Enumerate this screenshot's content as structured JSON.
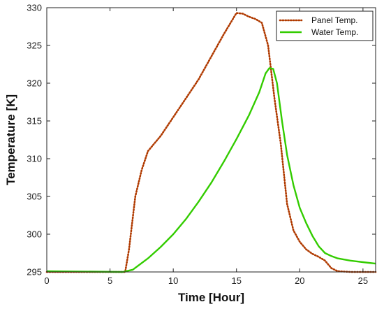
{
  "chart_data": {
    "type": "line",
    "xlabel": "Time [Hour]",
    "ylabel": "Temperature [K]",
    "xlim": [
      0,
      26
    ],
    "ylim": [
      295,
      330
    ],
    "xticks": [
      0,
      5,
      10,
      15,
      20,
      25
    ],
    "yticks": [
      295,
      300,
      305,
      310,
      315,
      320,
      325,
      330
    ],
    "grid": false,
    "legend": "top-right",
    "series": [
      {
        "name": "Panel Temp.",
        "color": "#b03a00",
        "style": "dotted",
        "points": [
          [
            0,
            295
          ],
          [
            6.2,
            295
          ],
          [
            6.5,
            298
          ],
          [
            7,
            305
          ],
          [
            7.5,
            308.5
          ],
          [
            8,
            311
          ],
          [
            9,
            313
          ],
          [
            10,
            315.5
          ],
          [
            11,
            318
          ],
          [
            12,
            320.5
          ],
          [
            13,
            323.5
          ],
          [
            14,
            326.5
          ],
          [
            15,
            329.3
          ],
          [
            15.5,
            329.2
          ],
          [
            16,
            328.8
          ],
          [
            16.5,
            328.5
          ],
          [
            17,
            328.0
          ],
          [
            17.5,
            325
          ],
          [
            18,
            318
          ],
          [
            18.5,
            312
          ],
          [
            19,
            304
          ],
          [
            19.5,
            300.5
          ],
          [
            20,
            299
          ],
          [
            20.5,
            298
          ],
          [
            21,
            297.4
          ],
          [
            21.5,
            297
          ],
          [
            22,
            296.5
          ],
          [
            22.5,
            295.5
          ],
          [
            23,
            295.1
          ],
          [
            24,
            295
          ],
          [
            26,
            295
          ]
        ]
      },
      {
        "name": "Water Temp.",
        "color": "#33cc00",
        "style": "solid",
        "points": [
          [
            0,
            295.1
          ],
          [
            6,
            295
          ],
          [
            6.8,
            295.3
          ],
          [
            8,
            296.8
          ],
          [
            9,
            298.3
          ],
          [
            10,
            300
          ],
          [
            11,
            302
          ],
          [
            12,
            304.3
          ],
          [
            13,
            306.8
          ],
          [
            14,
            309.6
          ],
          [
            15,
            312.6
          ],
          [
            16,
            315.8
          ],
          [
            16.8,
            318.8
          ],
          [
            17.3,
            321.3
          ],
          [
            17.6,
            322.0
          ],
          [
            17.9,
            321.9
          ],
          [
            18.2,
            320
          ],
          [
            18.6,
            315
          ],
          [
            19,
            310.5
          ],
          [
            19.5,
            306.5
          ],
          [
            20,
            303.5
          ],
          [
            20.5,
            301.5
          ],
          [
            21,
            299.8
          ],
          [
            21.5,
            298.4
          ],
          [
            22,
            297.5
          ],
          [
            22.5,
            297.1
          ],
          [
            23,
            296.8
          ],
          [
            24,
            296.5
          ],
          [
            25,
            296.3
          ],
          [
            26,
            296.1
          ]
        ]
      }
    ]
  }
}
